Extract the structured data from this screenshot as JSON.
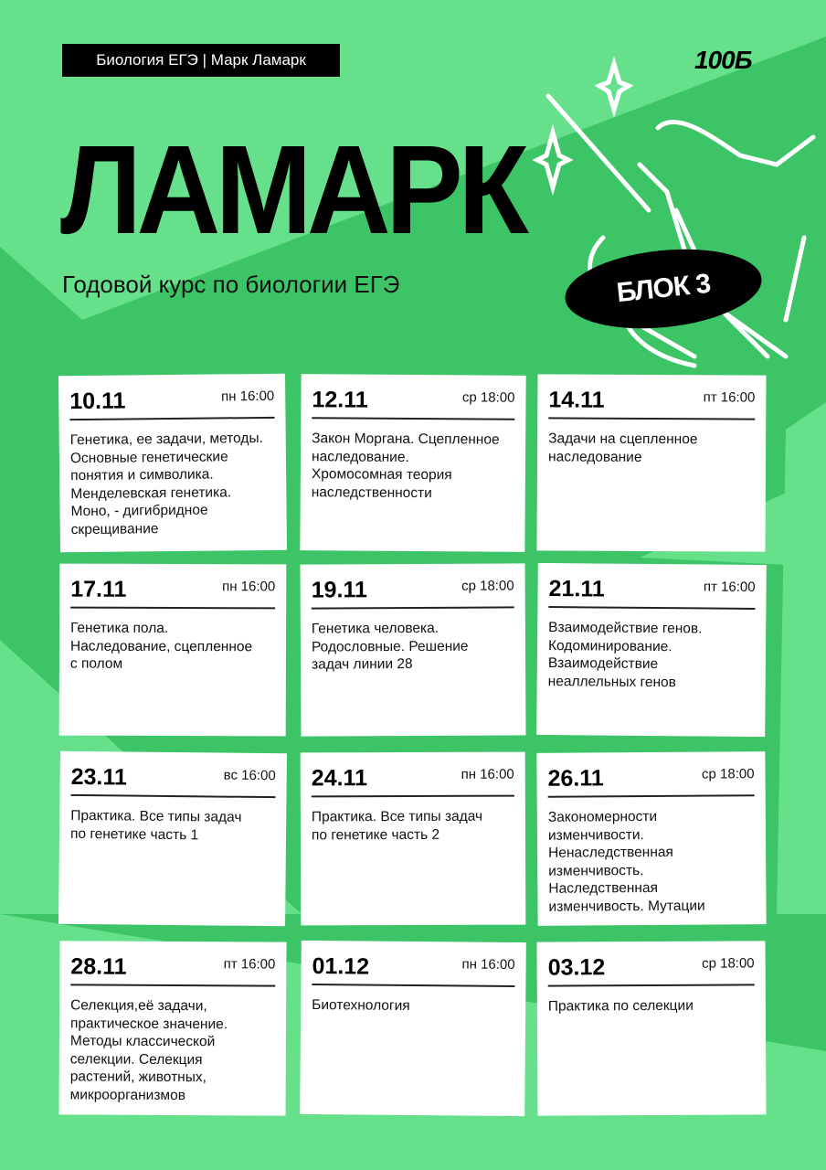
{
  "header": {
    "tag": "Биология ЕГЭ | Марк Ламарк",
    "logo": "100Б",
    "title": "ЛАМАРК",
    "subtitle": "Годовой курс по биологии ЕГЭ",
    "block": "БЛОК 3"
  },
  "colors": {
    "light_green": "#66e08a",
    "dark_green": "#3cc466",
    "card": "#ffffff",
    "text": "#000000"
  },
  "lessons": [
    {
      "date": "10.11",
      "time": "пн 16:00",
      "desc": "Генетика, ее задачи, методы.\nОсновные генетические\nпонятия и символика.\nМенделевская генетика.\nМоно, - дигибридное\nскрещивание"
    },
    {
      "date": "12.11",
      "time": "ср 18:00",
      "desc": "Закон Моргана. Сцепленное\nнаследование.\nХромосомная теория\nнаследственности"
    },
    {
      "date": "14.11",
      "time": "пт 16:00",
      "desc": "Задачи на сцепленное\nнаследование"
    },
    {
      "date": "17.11",
      "time": "пн 16:00",
      "desc": "Генетика пола.\nНаследование, сцепленное\nс полом"
    },
    {
      "date": "19.11",
      "time": "ср 18:00",
      "desc": "Генетика человека.\nРодословные. Решение\nзадач линии 28"
    },
    {
      "date": "21.11",
      "time": "пт 16:00",
      "desc": "Взаимодействие генов.\nКодоминирование.\nВзаимодействие\nнеаллельных генов"
    },
    {
      "date": "23.11",
      "time": "вс 16:00",
      "desc": "Практика. Все типы задач\nпо генетике часть 1"
    },
    {
      "date": "24.11",
      "time": "пн 16:00",
      "desc": "Практика. Все типы задач\nпо генетике часть 2"
    },
    {
      "date": "26.11",
      "time": "ср 18:00",
      "desc": "Закономерности\nизменчивости.\nНенаследственная\nизменчивость.\nНаследственная\nизменчивость. Мутации"
    },
    {
      "date": "28.11",
      "time": "пт 16:00",
      "desc": "Селекция,её задачи,\nпрактическое значение.\nМетоды классической\nселекции. Селекция\nрастений, животных,\nмикроорганизмов"
    },
    {
      "date": "01.12",
      "time": "пн 16:00",
      "desc": "Биотехнология"
    },
    {
      "date": "03.12",
      "time": "ср 18:00",
      "desc": "Практика по селекции"
    }
  ]
}
